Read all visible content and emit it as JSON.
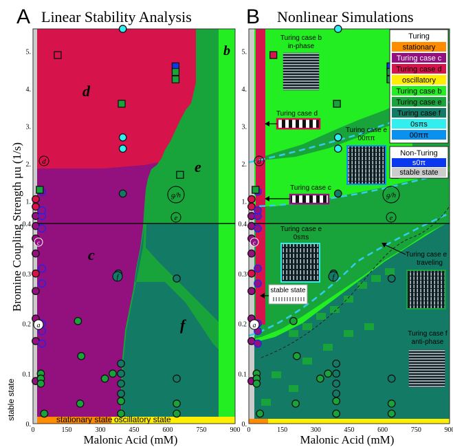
{
  "panels": [
    {
      "letter": "A",
      "title": "Linear Stability Analysis"
    },
    {
      "letter": "B",
      "title": "Nonlinear Simulations"
    }
  ],
  "ylabel": "Bromine Coupling Strength μu (1/s)",
  "xlabel": "Malonic Acid (mM)",
  "colors": {
    "stationary": "#ff8c00",
    "case_c": "#92117f",
    "case_d": "#d6134a",
    "oscillatory": "#ffee00",
    "case_b": "#22ee22",
    "case_e": "#18a43a",
    "case_f": "#137a66",
    "cyan": "#33eeee",
    "blue00": "#0a90ee",
    "nt_blue": "#0a38ee",
    "stable": "#cccccc"
  },
  "region_labels_A": [
    "d",
    "c",
    "b",
    "e",
    "f"
  ],
  "circle_labels_A": [
    "d",
    "g/h",
    "e",
    "c",
    "f",
    "a"
  ],
  "bottom_labels_A": {
    "stable": "stable state",
    "stationary": "stationary state",
    "oscillatory": "oscillatory state"
  },
  "legend": {
    "turing_title": "Turing",
    "turing_items": [
      "stationary",
      "Turing case c",
      "Turing case d",
      "oscillatory",
      "Turing case b",
      "Turing case e",
      "Turing case f",
      "0sπs",
      "00ππ"
    ],
    "nonturing_title": "Non-Turing",
    "nonturing_items": [
      "s0π",
      "stable state"
    ]
  },
  "annotations_B": [
    {
      "lines": [
        "Turing case b",
        "in-phase"
      ]
    },
    {
      "lines": [
        "Turing case d"
      ]
    },
    {
      "lines": [
        "Turing case e",
        "00ππ"
      ]
    },
    {
      "lines": [
        "Turing case c"
      ]
    },
    {
      "lines": [
        "Turing case e",
        "0sπs"
      ]
    },
    {
      "lines": [
        "stable state"
      ]
    },
    {
      "lines": [
        "Turing case e",
        "traveling"
      ]
    },
    {
      "lines": [
        "Turing case f",
        "anti-phase"
      ]
    }
  ],
  "chart_data": [
    {
      "type": "heatmap",
      "panel": "A",
      "title": "Linear Stability Analysis",
      "xlabel": "Malonic Acid (mM)",
      "ylabel": "Bromine Coupling Strength μu (1/s)",
      "xlim": [
        0,
        900
      ],
      "ylim_display": [
        0,
        5.6
      ],
      "y_scale": "piecewise: linear 0–0.4, compressed 0.4–5.6",
      "xticks": [
        "0",
        "150",
        "300",
        "450",
        "600",
        "750",
        "900"
      ],
      "yticks": [
        "0.",
        "0.1",
        "0.2",
        "0.3",
        "0.4",
        "1.",
        "2.",
        "3.",
        "4.",
        "5."
      ],
      "horizontal_line_y": 0.4,
      "regions": [
        {
          "label": "d",
          "case": "Turing case d"
        },
        {
          "label": "c",
          "case": "Turing case c"
        },
        {
          "label": "b",
          "case": "Turing case b"
        },
        {
          "label": "e",
          "case": "Turing case e"
        },
        {
          "label": "f",
          "case": "Turing case f"
        }
      ],
      "sample_points": [
        {
          "x": 12,
          "y": 0.085,
          "case": "c"
        },
        {
          "x": 12,
          "y": 0.165,
          "case": "c"
        },
        {
          "x": 12,
          "y": 0.21,
          "case": "c"
        },
        {
          "x": 12,
          "y": 0.265,
          "case": "c"
        },
        {
          "x": 12,
          "y": 0.3,
          "case": "d"
        },
        {
          "x": 12,
          "y": 0.34,
          "case": "c"
        },
        {
          "x": 12,
          "y": 0.37,
          "case": "c"
        },
        {
          "x": 12,
          "y": 0.395,
          "case": "c"
        },
        {
          "x": 12,
          "y": 0.6,
          "case": "c"
        },
        {
          "x": 12,
          "y": 0.85,
          "case": "d"
        },
        {
          "x": 12,
          "y": 1.05,
          "case": "d"
        },
        {
          "x": 40,
          "y": 0.16,
          "case": "c",
          "edge": "blue"
        },
        {
          "x": 40,
          "y": 0.185,
          "case": "c",
          "edge": "blue"
        },
        {
          "x": 40,
          "y": 0.2,
          "case": "c",
          "edge": "blue"
        },
        {
          "x": 40,
          "y": 0.28,
          "case": "c",
          "edge": "blue"
        },
        {
          "x": 40,
          "y": 0.31,
          "case": "c",
          "edge": "blue"
        },
        {
          "x": 40,
          "y": 0.39,
          "case": "c",
          "edge": "blue"
        },
        {
          "x": 40,
          "y": 0.6,
          "case": "c",
          "edge": "blue"
        },
        {
          "x": 40,
          "y": 0.75,
          "case": "c",
          "edge": "blue"
        },
        {
          "x": 40,
          "y": 1.25,
          "case": "c",
          "edge": "blue"
        },
        {
          "x": 35,
          "y": 0.1,
          "case": "e"
        },
        {
          "x": 35,
          "y": 0.09,
          "case": "e"
        },
        {
          "x": 35,
          "y": 0.08,
          "case": "e"
        },
        {
          "x": 50,
          "y": 0.02,
          "case": "e"
        },
        {
          "x": 200,
          "y": 0.205,
          "case": "e"
        },
        {
          "x": 215,
          "y": 0.135,
          "case": "e"
        },
        {
          "x": 210,
          "y": 0.04,
          "case": "e"
        },
        {
          "x": 320,
          "y": 0.09,
          "case": "e"
        },
        {
          "x": 355,
          "y": 0.1,
          "case": "e"
        },
        {
          "x": 380,
          "y": 0.3,
          "case": "f"
        },
        {
          "x": 392,
          "y": 0.12,
          "case": "f"
        },
        {
          "x": 392,
          "y": 0.1,
          "case": "f"
        },
        {
          "x": 392,
          "y": 0.08,
          "case": "f"
        },
        {
          "x": 392,
          "y": 0.06,
          "case": "f"
        },
        {
          "x": 392,
          "y": 0.045,
          "case": "e"
        },
        {
          "x": 392,
          "y": 0.02,
          "case": "e"
        },
        {
          "x": 400,
          "y": 1.2,
          "case": "f"
        },
        {
          "x": 400,
          "y": 2.4,
          "case": "cyan"
        },
        {
          "x": 400,
          "y": 2.7,
          "case": "cyan"
        },
        {
          "x": 400,
          "y": 5.6,
          "case": "cyan"
        },
        {
          "x": 640,
          "y": 0.29,
          "case": "f"
        },
        {
          "x": 640,
          "y": 0.09,
          "case": "f"
        },
        {
          "x": 640,
          "y": 0.04,
          "case": "e"
        },
        {
          "x": 640,
          "y": 0.02,
          "case": "e"
        }
      ],
      "sample_squares": [
        {
          "x": 110,
          "y": 4.9,
          "case": "d"
        },
        {
          "x": 30,
          "y": 1.3,
          "case": "e"
        },
        {
          "x": 395,
          "y": 3.6,
          "case": "e"
        },
        {
          "x": 635,
          "y": 4.6,
          "case": "nt_blue"
        },
        {
          "x": 635,
          "y": 4.45,
          "case": "e"
        },
        {
          "x": 635,
          "y": 4.25,
          "case": "e"
        },
        {
          "x": 655,
          "y": 1.7,
          "case": "e"
        }
      ]
    },
    {
      "type": "heatmap",
      "panel": "B",
      "title": "Nonlinear Simulations",
      "xlabel": "Malonic Acid (mM)",
      "xlim": [
        0,
        900
      ],
      "xticks": [
        "0",
        "150",
        "300",
        "450",
        "600",
        "750",
        "900"
      ],
      "yticks": [
        "0.",
        "0.1",
        "0.2",
        "0.3",
        "0.4",
        "1.",
        "2.",
        "3.",
        "4.",
        "5."
      ],
      "horizontal_line_y": 0.4
    }
  ]
}
